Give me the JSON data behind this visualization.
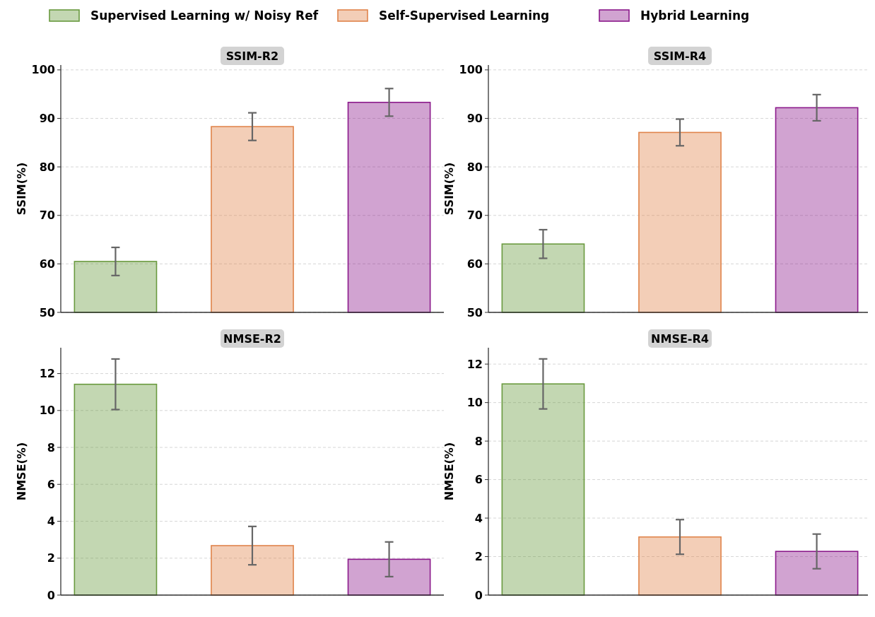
{
  "chart_data": [
    {
      "type": "bar",
      "title": "SSIM-R2",
      "ylabel": "SSIM(%)",
      "categories": [
        null,
        null,
        null
      ],
      "ylim": [
        50,
        101
      ],
      "yticks": [
        50,
        60,
        70,
        80,
        90,
        100
      ],
      "grid": "y",
      "legend": "top",
      "series": [
        {
          "name": "Supervised Learning w/ Noisy Ref",
          "color": "#6a9a3f",
          "values": [
            60.5,
            null,
            null
          ],
          "errors": [
            2.9,
            null,
            null
          ]
        },
        {
          "name": "Self-Supervised Learning",
          "color": "#e0844b",
          "values": [
            null,
            88.3,
            null
          ],
          "errors": [
            null,
            2.85,
            null
          ]
        },
        {
          "name": "Hybrid Learning",
          "color": "#8b1a8b",
          "values": [
            null,
            null,
            93.3
          ],
          "errors": [
            null,
            null,
            2.85
          ]
        }
      ]
    },
    {
      "type": "bar",
      "title": "SSIM-R4",
      "ylabel": "SSIM(%)",
      "categories": [
        null,
        null,
        null
      ],
      "ylim": [
        50,
        101
      ],
      "yticks": [
        50,
        60,
        70,
        80,
        90,
        100
      ],
      "grid": "y",
      "series": [
        {
          "color": "#6a9a3f",
          "values": [
            64.1,
            null,
            null
          ],
          "errors": [
            2.95,
            null,
            null
          ]
        },
        {
          "color": "#e0844b",
          "values": [
            null,
            87.1,
            null
          ],
          "errors": [
            null,
            2.75,
            null
          ]
        },
        {
          "color": "#8b1a8b",
          "values": [
            null,
            null,
            92.2
          ],
          "errors": [
            null,
            null,
            2.7
          ]
        }
      ]
    },
    {
      "type": "bar",
      "title": "NMSE-R2",
      "ylabel": "NMSE(%)",
      "categories": [
        null,
        null,
        null
      ],
      "ylim": [
        0,
        13.4
      ],
      "yticks": [
        0,
        2,
        4,
        6,
        8,
        10,
        12
      ],
      "grid": "y",
      "series": [
        {
          "color": "#6a9a3f",
          "values": [
            11.42,
            null,
            null
          ],
          "errors": [
            1.37,
            null,
            null
          ]
        },
        {
          "color": "#e0844b",
          "values": [
            null,
            2.68,
            null
          ],
          "errors": [
            null,
            1.04,
            null
          ]
        },
        {
          "color": "#8b1a8b",
          "values": [
            null,
            null,
            1.94
          ],
          "errors": [
            null,
            null,
            0.94
          ]
        }
      ]
    },
    {
      "type": "bar",
      "title": "NMSE-R4",
      "ylabel": "NMSE(%)",
      "categories": [
        null,
        null,
        null
      ],
      "ylim": [
        0,
        12.85
      ],
      "yticks": [
        0,
        2,
        4,
        6,
        8,
        10,
        12
      ],
      "grid": "y",
      "series": [
        {
          "color": "#6a9a3f",
          "values": [
            10.97,
            null,
            null
          ],
          "errors": [
            1.3,
            null,
            null
          ]
        },
        {
          "color": "#e0844b",
          "values": [
            null,
            3.02,
            null
          ],
          "errors": [
            null,
            0.9,
            null
          ]
        },
        {
          "color": "#8b1a8b",
          "values": [
            null,
            null,
            2.27
          ],
          "errors": [
            null,
            null,
            0.9
          ]
        }
      ]
    }
  ]
}
